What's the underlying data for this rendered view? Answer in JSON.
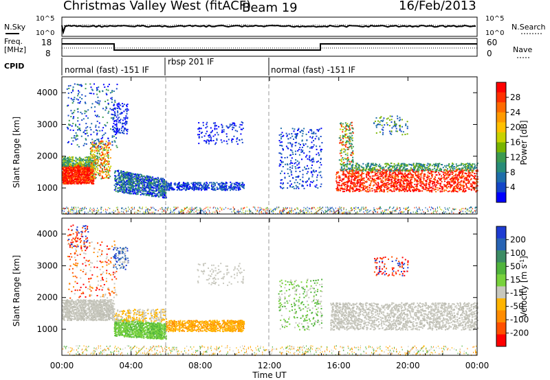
{
  "header": {
    "station": "Christmas Valley West (fitACF)",
    "beam": "Beam 19",
    "date": "16/Feb/2013"
  },
  "top_panels": {
    "nsky_label": "N.Sky",
    "nsky_ticks": [
      "10^5",
      "10^0"
    ],
    "nsearch_label": "N.Search",
    "nsearch_ticks": [
      "10^5",
      "10^0"
    ],
    "freq_label_1": "Freq.",
    "freq_label_2": "[MHz]",
    "freq_ticks": [
      "18",
      "8"
    ],
    "nave_label": "Nave",
    "nave_ticks": [
      "60",
      "0"
    ],
    "cpid_label": "CPID",
    "cpid_segments": [
      {
        "label": "normal (fast) -151 IF",
        "start": 0,
        "end": 6
      },
      {
        "label": "rbsp 201 IF",
        "start": 6,
        "end": 12
      },
      {
        "label": "normal (fast) -151 IF",
        "start": 12,
        "end": 24
      }
    ]
  },
  "x_axis": {
    "label": "Time UT",
    "ticks": [
      "00:00",
      "04:00",
      "08:00",
      "12:00",
      "16:00",
      "20:00",
      "00:00"
    ]
  },
  "power_panel": {
    "ylabel": "Slant Range [km]",
    "yticks": [
      "4000",
      "3000",
      "2000",
      "1000"
    ],
    "colorbar_label": "Power [dB]",
    "colorbar_ticks": [
      "28",
      "24",
      "20",
      "16",
      "12",
      "8",
      "4"
    ],
    "colorbar_colors": [
      "#ff0000",
      "#ff3000",
      "#ff6a00",
      "#ff9a00",
      "#ffc000",
      "#c8d200",
      "#78b400",
      "#3c9a50",
      "#288c78",
      "#1e6eaa",
      "#1446c8",
      "#0000ff"
    ]
  },
  "velocity_panel": {
    "ylabel": "Slant Range [km]",
    "yticks": [
      "4000",
      "3000",
      "2000",
      "1000"
    ],
    "colorbar_label": "Velocity [m s",
    "colorbar_label_sup": "-1",
    "colorbar_label_end": "]",
    "colorbar_ticks": [
      "200",
      "100",
      "50",
      "15",
      "-15",
      "-50",
      "-100",
      "-200"
    ],
    "colorbar_colors": [
      "#1e3cd2",
      "#2864b4",
      "#3c8c64",
      "#50b43c",
      "#78d23c",
      "#c8c8be",
      "#ffb400",
      "#ff8c00",
      "#ff5000",
      "#ff0000"
    ]
  },
  "chart_data": {
    "type": "heatmap",
    "x_range_hours": [
      0,
      24
    ],
    "y_range_km": [
      180,
      4500
    ],
    "power_regions": [
      {
        "t0": 0.0,
        "t1": 1.8,
        "r0": 1150,
        "r1": 1800,
        "level": "high"
      },
      {
        "t0": 1.8,
        "t1": 2.8,
        "r0": 1400,
        "r1": 2400,
        "level": "mid"
      },
      {
        "t0": 3.0,
        "t1": 6.0,
        "r0": 700,
        "r1": 1600,
        "level": "low"
      },
      {
        "t0": 6.0,
        "t1": 10.5,
        "r0": 900,
        "r1": 1200,
        "level": "low"
      },
      {
        "t0": 16.0,
        "t1": 24.0,
        "r0": 900,
        "r1": 1700,
        "level": "high"
      }
    ],
    "velocity_regions": [
      {
        "t0": 0.0,
        "t1": 3.0,
        "r0": 1300,
        "r1": 1900,
        "vel": "~0"
      },
      {
        "t0": 3.0,
        "t1": 6.0,
        "r0": 700,
        "r1": 1300,
        "vel": "+15..+50"
      },
      {
        "t0": 6.0,
        "t1": 10.5,
        "r0": 900,
        "r1": 1200,
        "vel": "-15..-50"
      },
      {
        "t0": 16.0,
        "t1": 24.0,
        "r0": 1000,
        "r1": 1800,
        "vel": "~0"
      }
    ]
  }
}
